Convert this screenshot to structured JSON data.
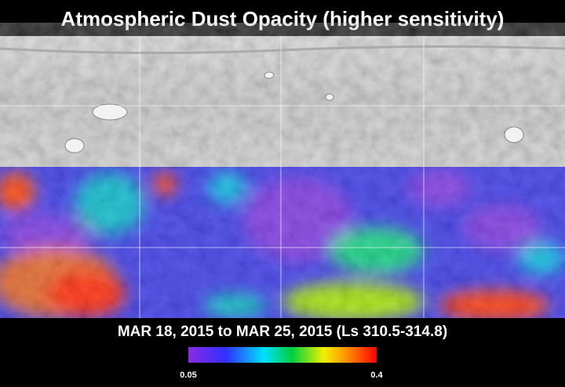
{
  "title": "Atmospheric Dust Opacity (higher sensitivity)",
  "period": "MAR 18, 2015 to MAR 25, 2015 (Ls 310.5-314.8)",
  "colorbar": {
    "ticks": [
      0.05,
      0.4
    ]
  }
}
